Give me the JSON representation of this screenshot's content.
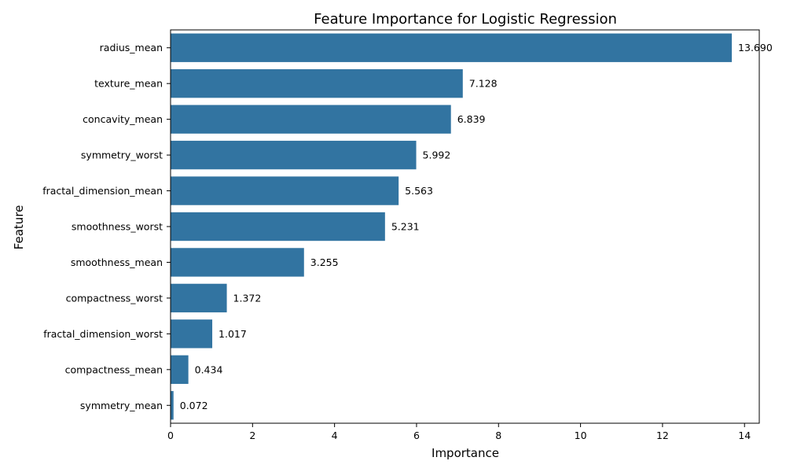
{
  "chart_data": {
    "type": "bar",
    "orientation": "horizontal",
    "title": "Feature Importance for Logistic Regression",
    "xlabel": "Importance",
    "ylabel": "Feature",
    "xlim": [
      0,
      14.36
    ],
    "xticks": [
      0,
      2,
      4,
      6,
      8,
      10,
      12,
      14
    ],
    "grid": false,
    "bar_color": "#3274a1",
    "categories": [
      "radius_mean",
      "texture_mean",
      "concavity_mean",
      "symmetry_worst",
      "fractal_dimension_mean",
      "smoothness_worst",
      "smoothness_mean",
      "compactness_worst",
      "fractal_dimension_worst",
      "compactness_mean",
      "symmetry_mean"
    ],
    "values": [
      13.69,
      7.128,
      6.839,
      5.992,
      5.563,
      5.231,
      3.255,
      1.372,
      1.017,
      0.434,
      0.072
    ],
    "value_labels": [
      "13.690",
      "7.128",
      "6.839",
      "5.992",
      "5.563",
      "5.231",
      "3.255",
      "1.372",
      "1.017",
      "0.434",
      "0.072"
    ]
  }
}
